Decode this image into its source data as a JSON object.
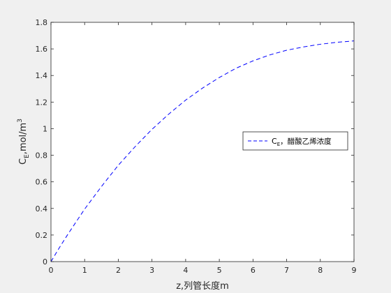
{
  "chart_data": {
    "type": "line",
    "xlabel": "z,列管长度m",
    "ylabel": {
      "base": "C",
      "sub": "E",
      "mid": ",mol/m",
      "sup": "3"
    },
    "xlim": [
      0,
      9
    ],
    "ylim": [
      0,
      1.8
    ],
    "x_ticks": [
      "0",
      "1",
      "2",
      "3",
      "4",
      "5",
      "6",
      "7",
      "8",
      "9"
    ],
    "y_ticks": [
      "0",
      "0.2",
      "0.4",
      "0.6",
      "0.8",
      "1",
      "1.2",
      "1.4",
      "1.6",
      "1.8"
    ],
    "grid": false,
    "legend_position": "right",
    "series": [
      {
        "name": {
          "base": "C",
          "sub": "E",
          "rest": "，醋酸乙烯浓度"
        },
        "color": "#0000ff",
        "style": "dashed",
        "x": [
          0,
          0.25,
          0.5,
          1,
          1.5,
          2,
          2.5,
          3,
          3.5,
          4,
          4.5,
          5,
          5.5,
          6,
          6.5,
          7,
          7.5,
          8,
          8.5,
          9
        ],
        "y": [
          0,
          0.105,
          0.205,
          0.395,
          0.565,
          0.725,
          0.865,
          0.995,
          1.11,
          1.215,
          1.305,
          1.385,
          1.455,
          1.51,
          1.555,
          1.59,
          1.615,
          1.635,
          1.65,
          1.66
        ]
      }
    ]
  }
}
